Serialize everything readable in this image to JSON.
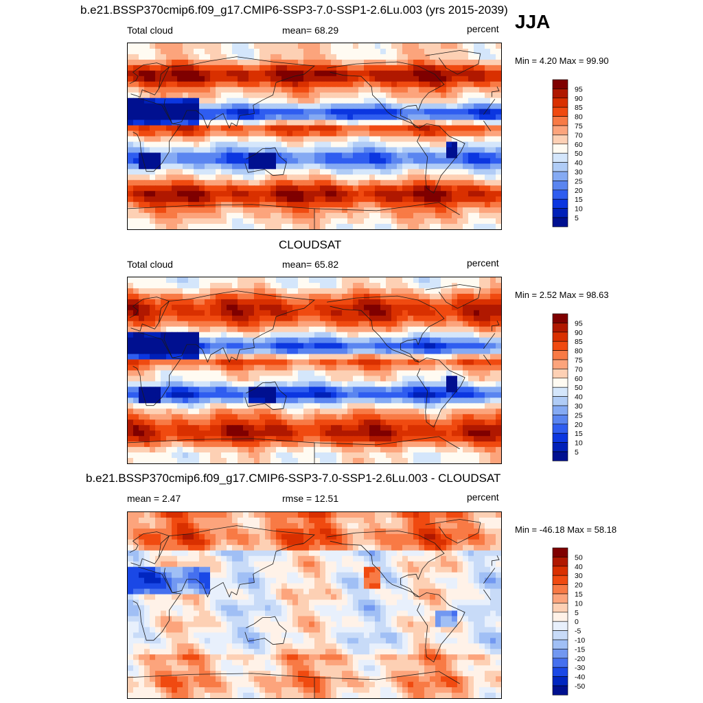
{
  "figure": {
    "title": "b.e21.BSSP370cmip6.f09_g17.CMIP6-SSP3-7.0-SSP1-2.6Lu.003 (yrs 2015-2039)",
    "season": "JJA"
  },
  "panels": [
    {
      "id": "model",
      "left_label": "Total cloud",
      "center_label": "mean=  68.29",
      "right_label": "percent",
      "minmax": "Min =   4.20 Max =  99.90",
      "palette": "cloud",
      "levels": [
        "95",
        "90",
        "85",
        "80",
        "75",
        "70",
        "60",
        "50",
        "40",
        "30",
        "25",
        "20",
        "15",
        "10",
        "5"
      ]
    },
    {
      "id": "obs",
      "title": "CLOUDSAT",
      "left_label": "Total cloud",
      "center_label": "mean=  65.82",
      "right_label": "percent",
      "minmax": "Min =   2.52 Max =  98.63",
      "palette": "cloud",
      "levels": [
        "95",
        "90",
        "85",
        "80",
        "75",
        "70",
        "60",
        "50",
        "40",
        "30",
        "25",
        "20",
        "15",
        "10",
        "5"
      ]
    },
    {
      "id": "diff",
      "title": "b.e21.BSSP370cmip6.f09_g17.CMIP6-SSP3-7.0-SSP1-2.6Lu.003 - CLOUDSAT",
      "left_label": "mean =   2.47",
      "center_label": "rmse =  12.51",
      "right_label": "percent",
      "minmax": "Min = -46.18 Max =  58.18",
      "palette": "diff",
      "levels": [
        "50",
        "40",
        "30",
        "20",
        "15",
        "10",
        "5",
        "0",
        "-5",
        "-10",
        "-15",
        "-20",
        "-30",
        "-40",
        "-50"
      ]
    }
  ],
  "colors": {
    "cloud": [
      "#7f0000",
      "#b01800",
      "#d93000",
      "#f04a10",
      "#f87a45",
      "#fca47c",
      "#fdd0b4",
      "#fffbf2",
      "#d4e6fb",
      "#b0ccf6",
      "#85aaf3",
      "#5a85f0",
      "#2f5df0",
      "#0b36e0",
      "#0020b8",
      "#001090"
    ],
    "diff": [
      "#7f0000",
      "#b01800",
      "#d93000",
      "#f04a10",
      "#f87a45",
      "#fca47c",
      "#fdd0b4",
      "#fff2e8",
      "#e8f0fc",
      "#c8dbf8",
      "#a0bff5",
      "#7298f1",
      "#4570ef",
      "#1a48e6",
      "#0026c0",
      "#00108f"
    ],
    "land_outline": "#1a1a1a"
  }
}
